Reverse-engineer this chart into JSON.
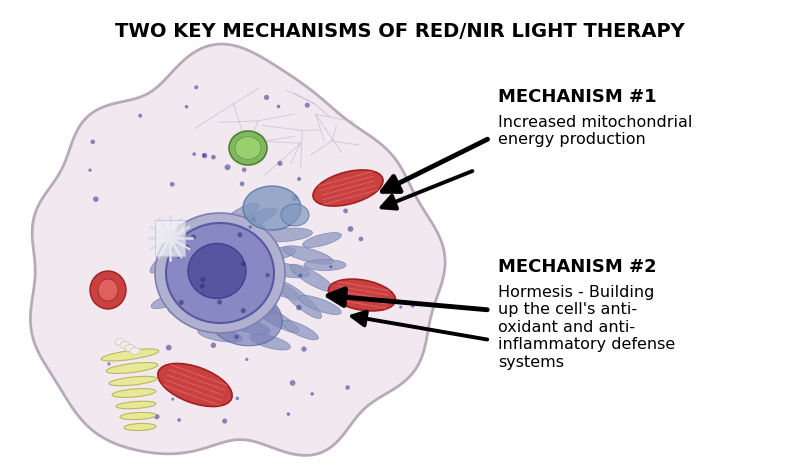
{
  "title": "TWO KEY MECHANISMS OF RED/NIR LIGHT THERAPY",
  "title_fontsize": 14,
  "title_fontweight": "bold",
  "bg_color": "#ffffff",
  "mechanism1_title": "MECHANISM #1",
  "mechanism1_body": "Increased mitochondrial\nenergy production",
  "mechanism2_title": "MECHANISM #2",
  "mechanism2_body": "Hormesis - Building\nup the cell's anti-\noxidant and anti-\ninflammatory defense\nsystems",
  "cell_fill": "#f2e8f0",
  "cell_edge": "#b8aab8",
  "nucleus_fill": "#7878b8",
  "nucleus_edge": "#5858a0",
  "nucleus_outer_fill": "#b0b0d0",
  "er_fill": "#9098c0",
  "er_edge": "#7080b0",
  "mito_fill": "#c84040",
  "mito_edge": "#a02020",
  "mito_inner": "#e06060",
  "green_fill": "#70a850",
  "green_edge": "#508030",
  "blue_vesicle_fill": "#7090b8",
  "blue_vesicle_edge": "#5070a0",
  "red_lyso_fill": "#c84040",
  "red_lyso_edge": "#a02020",
  "yellow_golgi_fill": "#e8e898",
  "yellow_golgi_edge": "#b8b860",
  "white_crystal_color": "#e0dde8",
  "dot_color": "#303088"
}
